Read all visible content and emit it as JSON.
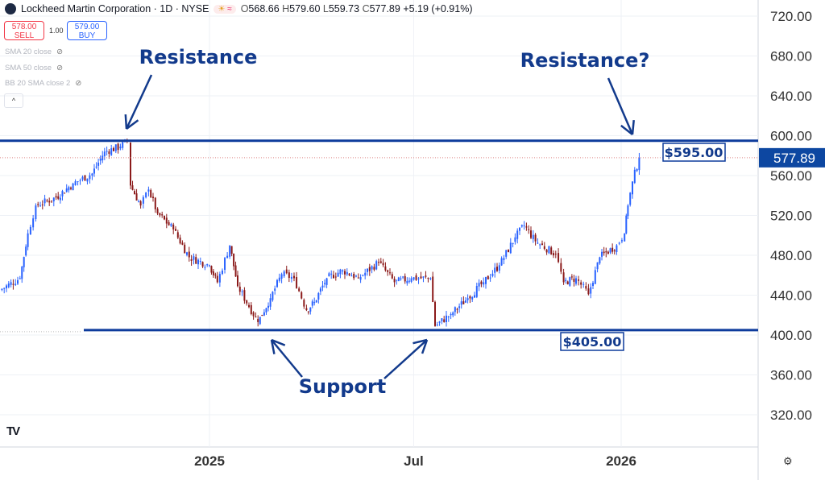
{
  "header": {
    "title": "Lockheed Martin Corporation · 1D · NYSE",
    "open_label": "O",
    "open": "568.66",
    "high_label": "H",
    "high": "579.60",
    "low_label": "L",
    "low": "559.73",
    "close_label": "C",
    "close": "577.89",
    "change": "+5.19 (+0.91%)",
    "market_icon": "sun-icon",
    "session_icon": "wave-icon"
  },
  "trade": {
    "sell_price": "578.00",
    "sell_label": "SELL",
    "qty": "1.00",
    "buy_price": "579.00",
    "buy_label": "BUY"
  },
  "indicators": [
    {
      "label": "SMA 20 close"
    },
    {
      "label": "SMA 50 close"
    },
    {
      "label": "BB 20 SMA close 2"
    }
  ],
  "collapse_label": "^",
  "brand": "TV",
  "settings_icon": "⚙",
  "colors": {
    "up": "#2962ff",
    "down": "#8b1a1a",
    "line": "#0d3b9c",
    "annotation": "#123a8c",
    "price_tag": "#0d47a1"
  },
  "chart_data": {
    "type": "candlestick",
    "title": "Lockheed Martin Corporation · 1D · NYSE",
    "ylim": [
      290,
      740
    ],
    "y_ticks": [
      "720.00",
      "680.00",
      "640.00",
      "600.00",
      "560.00",
      "520.00",
      "480.00",
      "440.00",
      "400.00",
      "360.00",
      "320.00"
    ],
    "y_tick_values": [
      720,
      680,
      640,
      600,
      560,
      520,
      480,
      440,
      400,
      360,
      320
    ],
    "x_ticks": [
      {
        "label": "2025",
        "date": "2025-01-01"
      },
      {
        "label": "Jul",
        "date": "2025-07-01"
      },
      {
        "label": "2026",
        "date": "2026-01-01"
      }
    ],
    "last_price": "577.89",
    "levels": [
      {
        "value": 595,
        "label": "$595.00",
        "annotation": "Resistance"
      },
      {
        "value": 405,
        "label": "$405.00",
        "annotation": "Support"
      }
    ],
    "annotations": [
      "Resistance",
      "Resistance?",
      "Support"
    ],
    "closes": [
      [
        "2024-06-29",
        445
      ],
      [
        "2024-07-17",
        457
      ],
      [
        "2024-07-24",
        502
      ],
      [
        "2024-07-31",
        530
      ],
      [
        "2024-08-18",
        538
      ],
      [
        "2024-09-02",
        552
      ],
      [
        "2024-09-19",
        562
      ],
      [
        "2024-09-30",
        584
      ],
      [
        "2024-10-14",
        589
      ],
      [
        "2024-10-20",
        595
      ],
      [
        "2024-10-23",
        550
      ],
      [
        "2024-11-01",
        530
      ],
      [
        "2024-11-08",
        546
      ],
      [
        "2024-11-16",
        522
      ],
      [
        "2024-11-30",
        506
      ],
      [
        "2024-12-14",
        478
      ],
      [
        "2025-01-01",
        470
      ],
      [
        "2025-01-08",
        453
      ],
      [
        "2025-01-19",
        490
      ],
      [
        "2025-01-26",
        449
      ],
      [
        "2025-02-13",
        413
      ],
      [
        "2025-02-24",
        437
      ],
      [
        "2025-03-06",
        461
      ],
      [
        "2025-03-17",
        457
      ],
      [
        "2025-03-28",
        425
      ],
      [
        "2025-04-04",
        433
      ],
      [
        "2025-04-15",
        457
      ],
      [
        "2025-04-29",
        465
      ],
      [
        "2025-05-13",
        457
      ],
      [
        "2025-05-31",
        473
      ],
      [
        "2025-06-14",
        453
      ],
      [
        "2025-06-29",
        457
      ],
      [
        "2025-07-16",
        457
      ],
      [
        "2025-07-20",
        409
      ],
      [
        "2025-08-03",
        421
      ],
      [
        "2025-08-18",
        437
      ],
      [
        "2025-09-01",
        453
      ],
      [
        "2025-09-15",
        470
      ],
      [
        "2025-09-29",
        498
      ],
      [
        "2025-10-07",
        510
      ],
      [
        "2025-10-17",
        494
      ],
      [
        "2025-11-04",
        481
      ],
      [
        "2025-11-11",
        453
      ],
      [
        "2025-11-22",
        457
      ],
      [
        "2025-12-03",
        441
      ],
      [
        "2025-12-13",
        478
      ],
      [
        "2025-12-28",
        490
      ],
      [
        "2026-01-04",
        502
      ],
      [
        "2026-01-07",
        530
      ],
      [
        "2026-01-11",
        554
      ],
      [
        "2026-01-17",
        578
      ]
    ]
  }
}
